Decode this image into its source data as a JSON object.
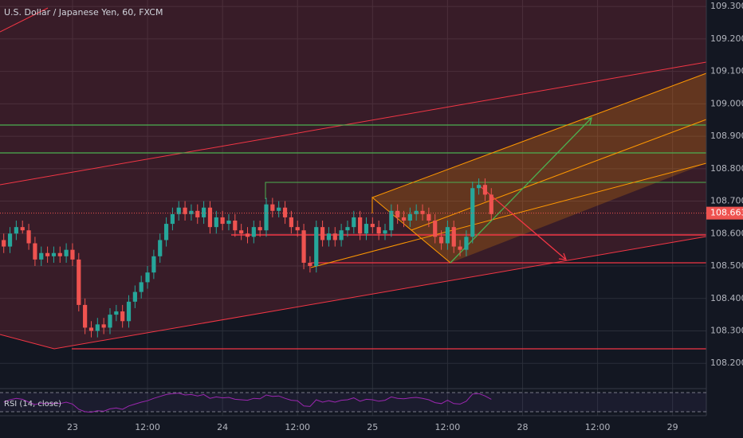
{
  "chart_data": {
    "type": "candlestick",
    "title": "U.S. Dollar / Japanese Yen, 60, FXCM",
    "indicator_label": "RSI (14, close)",
    "last_price": {
      "value": 108.663,
      "label": "108.663"
    },
    "up_color": "#26a69a",
    "down_color": "#ef5350",
    "rsi_color": "#9c27b0",
    "grid": true,
    "xlim": [
      -11.6,
      101.4
    ],
    "ylim": [
      108.122,
      109.32
    ],
    "rsi_ylim": [
      30,
      70
    ],
    "xticks": [
      {
        "value": 0,
        "label": "23"
      },
      {
        "value": 12,
        "label": "12:00"
      },
      {
        "value": 24,
        "label": "24"
      },
      {
        "value": 36,
        "label": "12:00"
      },
      {
        "value": 48,
        "label": "25"
      },
      {
        "value": 60,
        "label": "12:00"
      },
      {
        "value": 72,
        "label": "28"
      },
      {
        "value": 84,
        "label": "12:00"
      },
      {
        "value": 96,
        "label": "29"
      }
    ],
    "yticks": [
      {
        "value": 108.2,
        "label": "108.200"
      },
      {
        "value": 108.3,
        "label": "108.300"
      },
      {
        "value": 108.4,
        "label": "108.400"
      },
      {
        "value": 108.5,
        "label": "108.500"
      },
      {
        "value": 108.6,
        "label": "108.600"
      },
      {
        "value": 108.7,
        "label": "108.700"
      },
      {
        "value": 108.8,
        "label": "108.800"
      },
      {
        "value": 108.9,
        "label": "108.900"
      },
      {
        "value": 109.0,
        "label": "109.000"
      },
      {
        "value": 109.1,
        "label": "109.100"
      },
      {
        "value": 109.2,
        "label": "109.200"
      },
      {
        "value": 109.3,
        "label": "109.300"
      }
    ],
    "x": [
      -11,
      -10,
      -9,
      -8,
      -7,
      -6,
      -5,
      -4,
      -3,
      -2,
      -1,
      0,
      1,
      2,
      3,
      4,
      5,
      6,
      7,
      8,
      9,
      10,
      11,
      12,
      13,
      14,
      15,
      16,
      17,
      18,
      19,
      20,
      21,
      22,
      23,
      24,
      25,
      26,
      27,
      28,
      29,
      30,
      31,
      32,
      33,
      34,
      35,
      36,
      37,
      38,
      39,
      40,
      41,
      42,
      43,
      44,
      45,
      46,
      47,
      48,
      49,
      50,
      51,
      52,
      53,
      54,
      55,
      56,
      57,
      58,
      59,
      60,
      61,
      62,
      63,
      64,
      65,
      66,
      67
    ],
    "open": [
      108.58,
      108.56,
      108.6,
      108.62,
      108.61,
      108.57,
      108.52,
      108.54,
      108.53,
      108.54,
      108.53,
      108.55,
      108.52,
      108.38,
      108.31,
      108.3,
      108.32,
      108.31,
      108.35,
      108.36,
      108.33,
      108.39,
      108.42,
      108.45,
      108.48,
      108.53,
      108.58,
      108.63,
      108.66,
      108.68,
      108.66,
      108.67,
      108.65,
      108.68,
      108.62,
      108.65,
      108.63,
      108.64,
      108.61,
      108.6,
      108.59,
      108.62,
      108.61,
      108.69,
      108.67,
      108.68,
      108.65,
      108.62,
      108.61,
      108.51,
      108.5,
      108.62,
      108.58,
      108.6,
      108.58,
      108.61,
      108.62,
      108.65,
      108.6,
      108.63,
      108.62,
      108.6,
      108.61,
      108.67,
      108.65,
      108.64,
      108.66,
      108.67,
      108.66,
      108.64,
      108.59,
      108.57,
      108.62,
      108.56,
      108.55,
      108.59,
      108.74,
      108.75,
      108.72
    ],
    "high": [
      108.6,
      108.62,
      108.64,
      108.64,
      108.63,
      108.59,
      108.56,
      108.56,
      108.56,
      108.56,
      108.57,
      108.57,
      108.54,
      108.4,
      108.33,
      108.34,
      108.34,
      108.37,
      108.38,
      108.38,
      108.41,
      108.44,
      108.47,
      108.5,
      108.55,
      108.6,
      108.65,
      108.68,
      108.7,
      108.7,
      108.69,
      108.69,
      108.7,
      108.7,
      108.67,
      108.67,
      108.66,
      108.66,
      108.63,
      108.62,
      108.64,
      108.64,
      108.71,
      108.71,
      108.7,
      108.7,
      108.67,
      108.64,
      108.63,
      108.53,
      108.64,
      108.64,
      108.62,
      108.62,
      108.63,
      108.64,
      108.67,
      108.67,
      108.65,
      108.65,
      108.64,
      108.63,
      108.69,
      108.69,
      108.67,
      108.68,
      108.69,
      108.69,
      108.68,
      108.66,
      108.61,
      108.64,
      108.64,
      108.58,
      108.61,
      108.76,
      108.77,
      108.77,
      108.74
    ],
    "low": [
      108.54,
      108.54,
      108.58,
      108.6,
      108.55,
      108.5,
      108.5,
      108.51,
      108.51,
      108.51,
      108.51,
      108.5,
      108.36,
      108.29,
      108.28,
      108.28,
      108.29,
      108.29,
      108.33,
      108.31,
      108.31,
      108.37,
      108.4,
      108.43,
      108.46,
      108.51,
      108.56,
      108.61,
      108.64,
      108.64,
      108.64,
      108.63,
      108.63,
      108.6,
      108.6,
      108.61,
      108.61,
      108.59,
      108.58,
      108.57,
      108.57,
      108.59,
      108.59,
      108.65,
      108.65,
      108.63,
      108.6,
      108.59,
      108.49,
      108.48,
      108.48,
      108.56,
      108.56,
      108.56,
      108.56,
      108.59,
      108.6,
      108.58,
      108.58,
      108.6,
      108.58,
      108.58,
      108.59,
      108.63,
      108.62,
      108.62,
      108.64,
      108.64,
      108.62,
      108.57,
      108.55,
      108.55,
      108.54,
      108.53,
      108.53,
      108.57,
      108.72,
      108.7,
      108.64
    ],
    "close": [
      108.56,
      108.6,
      108.62,
      108.61,
      108.57,
      108.52,
      108.54,
      108.53,
      108.54,
      108.53,
      108.55,
      108.52,
      108.38,
      108.31,
      108.3,
      108.32,
      108.31,
      108.35,
      108.36,
      108.33,
      108.39,
      108.42,
      108.45,
      108.48,
      108.53,
      108.58,
      108.63,
      108.66,
      108.68,
      108.66,
      108.67,
      108.65,
      108.68,
      108.62,
      108.65,
      108.63,
      108.64,
      108.61,
      108.6,
      108.59,
      108.62,
      108.61,
      108.69,
      108.67,
      108.68,
      108.65,
      108.62,
      108.61,
      108.51,
      108.5,
      108.62,
      108.58,
      108.6,
      108.58,
      108.61,
      108.62,
      108.65,
      108.6,
      108.63,
      108.62,
      108.6,
      108.61,
      108.67,
      108.65,
      108.64,
      108.66,
      108.67,
      108.66,
      108.64,
      108.59,
      108.57,
      108.62,
      108.56,
      108.55,
      108.59,
      108.74,
      108.75,
      108.72,
      108.66
    ],
    "rsi": [
      50,
      55,
      58,
      56,
      50,
      45,
      48,
      47,
      48,
      47,
      50,
      46,
      35,
      30,
      29,
      32,
      31,
      36,
      38,
      35,
      42,
      46,
      50,
      53,
      58,
      62,
      66,
      68,
      69,
      65,
      66,
      63,
      66,
      58,
      61,
      59,
      60,
      56,
      55,
      54,
      58,
      57,
      65,
      62,
      63,
      58,
      54,
      53,
      42,
      41,
      55,
      50,
      53,
      50,
      54,
      55,
      59,
      52,
      56,
      55,
      52,
      54,
      61,
      58,
      57,
      59,
      60,
      58,
      55,
      49,
      47,
      54,
      47,
      46,
      52,
      67,
      68,
      63,
      56
    ]
  }
}
